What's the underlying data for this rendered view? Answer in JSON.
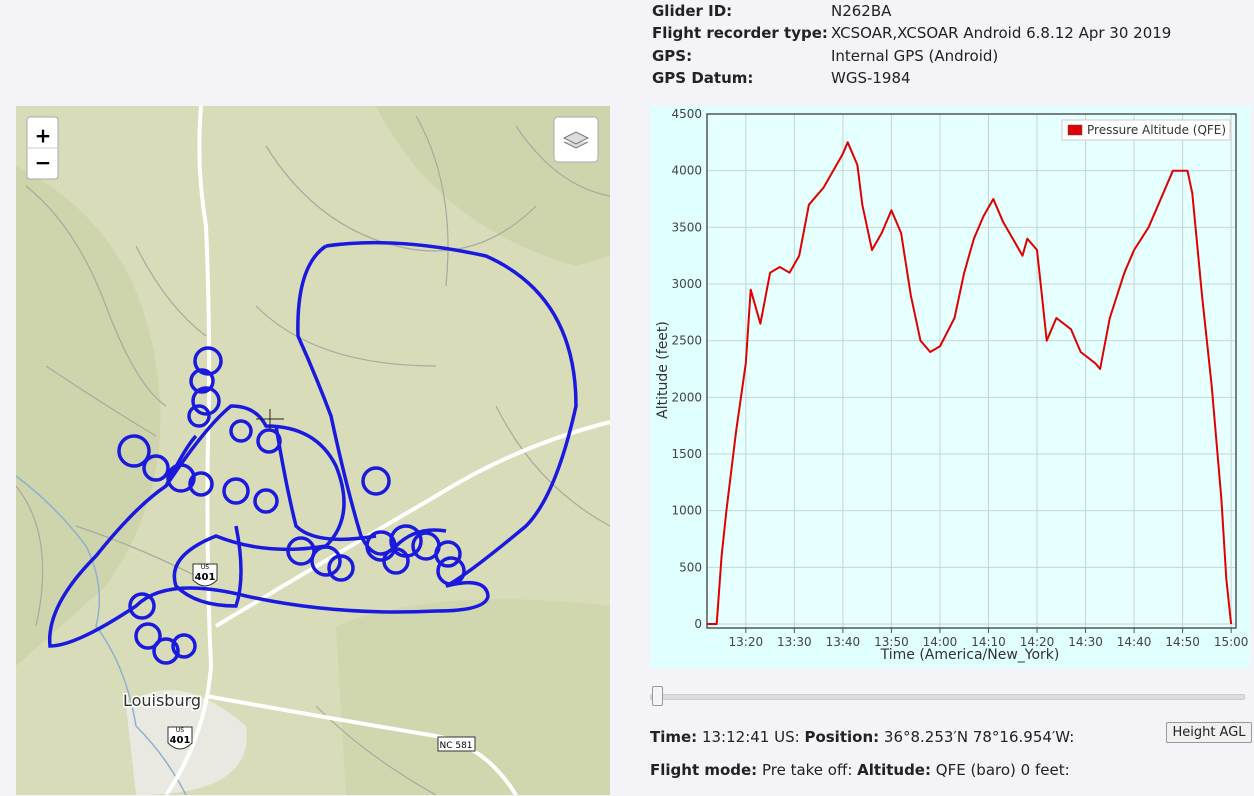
{
  "flight_info": {
    "rows": [
      {
        "label": "Glider ID:",
        "value": "N262BA"
      },
      {
        "label": "Flight recorder type:",
        "value": "XCSOAR,XCSOAR Android 6.8.12 Apr 30 2019"
      },
      {
        "label": "GPS:",
        "value": "Internal GPS (Android)"
      },
      {
        "label": "GPS Datum:",
        "value": "WGS-1984"
      }
    ]
  },
  "map": {
    "zoom_in": "+",
    "zoom_out": "−",
    "town": "Louisburg",
    "shield_prefix": "US",
    "shield_route": "401",
    "highway": "NC 581"
  },
  "chart_data": {
    "type": "line",
    "x_label": "Time (America/New_York)",
    "y_label": "Altitude (feet)",
    "x": [
      "13:12",
      "13:13",
      "13:14",
      "13:15",
      "13:16",
      "13:18",
      "13:20",
      "13:21",
      "13:23",
      "13:25",
      "13:27",
      "13:29",
      "13:31",
      "13:33",
      "13:36",
      "13:38",
      "13:40",
      "13:41",
      "13:43",
      "13:44",
      "13:46",
      "13:48",
      "13:50",
      "13:52",
      "13:54",
      "13:56",
      "13:58",
      "14:00",
      "14:03",
      "14:05",
      "14:07",
      "14:09",
      "14:11",
      "14:13",
      "14:15",
      "14:17",
      "14:18",
      "14:20",
      "14:21",
      "14:22",
      "14:24",
      "14:27",
      "14:29",
      "14:32",
      "14:33",
      "14:35",
      "14:38",
      "14:40",
      "14:43",
      "14:46",
      "14:48",
      "14:51",
      "14:52",
      "14:54",
      "14:56",
      "14:58",
      "14:59",
      "15:00"
    ],
    "series": [
      {
        "name": "Pressure Altitude (QFE)",
        "color": "#e00000",
        "values": [
          0,
          0,
          0,
          600,
          1000,
          1700,
          2300,
          2950,
          2650,
          3100,
          3150,
          3100,
          3250,
          3700,
          3850,
          4000,
          4150,
          4250,
          4050,
          3700,
          3300,
          3450,
          3650,
          3450,
          2900,
          2500,
          2400,
          2450,
          2700,
          3100,
          3400,
          3600,
          3750,
          3550,
          3400,
          3250,
          3400,
          3300,
          2900,
          2500,
          2700,
          2600,
          2400,
          2300,
          2250,
          2700,
          3100,
          3300,
          3500,
          3800,
          4000,
          4000,
          3800,
          2900,
          2100,
          1100,
          400,
          0
        ]
      }
    ],
    "xlim": [
      "13:12",
      "15:01"
    ],
    "xticks": [
      "13:20",
      "13:30",
      "13:40",
      "13:50",
      "14:00",
      "14:10",
      "14:20",
      "14:30",
      "14:40",
      "14:50",
      "15:00"
    ],
    "ylim": [
      0,
      4500
    ],
    "yticks": [
      0,
      500,
      1000,
      1500,
      2000,
      2500,
      3000,
      3500,
      4000,
      4500
    ],
    "grid": true,
    "legend": "top-right"
  },
  "status": {
    "time_label": "Time:",
    "time_value": "13:12:41 US:",
    "position_label": "Position:",
    "position_value": "36°8.253′N 78°16.954′W:",
    "flight_mode_label": "Flight mode:",
    "flight_mode_value": "Pre take off:",
    "altitude_label": "Altitude:",
    "altitude_value": "QFE (baro) 0 feet:"
  },
  "button": "Height AGL"
}
